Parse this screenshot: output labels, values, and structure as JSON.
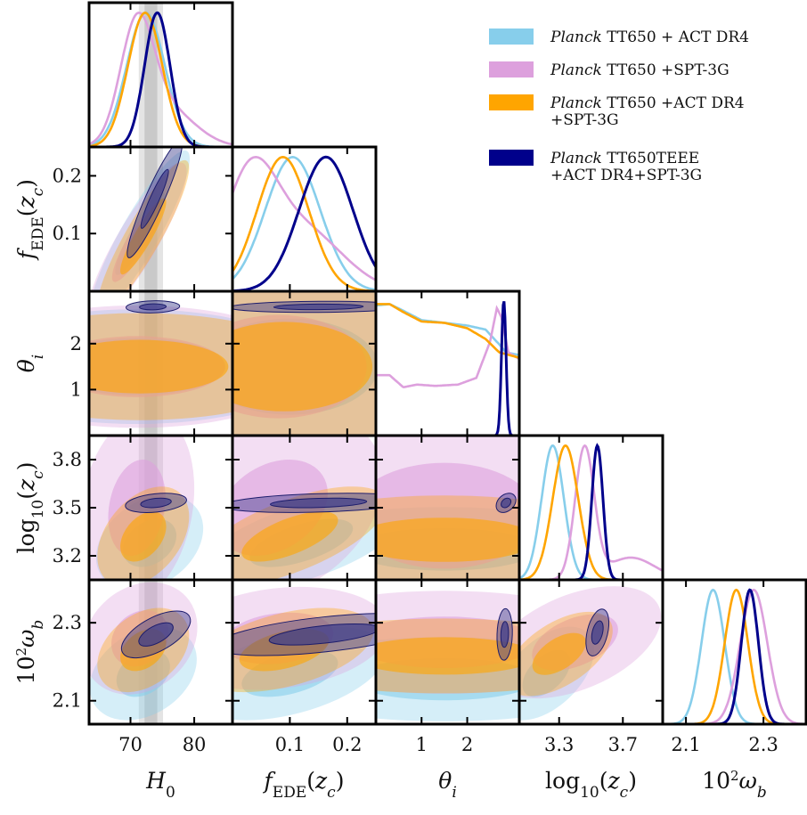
{
  "chart_data": {
    "type": "corner",
    "legend": {
      "placement": "top-right",
      "entries": [
        {
          "series": "act",
          "lines": [
            [
              "Planck",
              " TT650 + ACT DR4"
            ]
          ]
        },
        {
          "series": "spt",
          "lines": [
            [
              "Planck",
              " TT650 +SPT-3G"
            ]
          ]
        },
        {
          "series": "both",
          "lines": [
            [
              "Planck",
              " TT650 +ACT DR4"
            ],
            [
              "",
              " +SPT-3G"
            ]
          ]
        },
        {
          "series": "full",
          "lines": [
            [
              "Planck",
              " TT650TEEE"
            ],
            [
              "",
              " +ACT DR4+SPT-3G"
            ]
          ]
        }
      ]
    },
    "series": [
      {
        "id": "act",
        "color": "#87ceeb"
      },
      {
        "id": "spt",
        "color": "#dda0dd"
      },
      {
        "id": "both",
        "color": "#ffa500"
      },
      {
        "id": "full",
        "color": "#00008b"
      }
    ],
    "params": [
      {
        "key": "H0",
        "label_main": "H",
        "label_sub": "0",
        "range": [
          63.5,
          86
        ],
        "ticks": [
          70,
          80
        ],
        "tick_labels": [
          "70",
          "80"
        ]
      },
      {
        "key": "fEDE",
        "label_main": "f",
        "label_sub": "EDE",
        "label_tail": "(z",
        "label_tail_sub": "c",
        "label_end": ")",
        "range": [
          0.0,
          0.25
        ],
        "ticks": [
          0.1,
          0.2
        ],
        "tick_labels": [
          "0.1",
          "0.2"
        ]
      },
      {
        "key": "theta",
        "label_main": "θ",
        "label_sub": "i",
        "range": [
          0.0,
          3.14
        ],
        "ticks": [
          1,
          2
        ],
        "tick_labels": [
          "1",
          "2"
        ]
      },
      {
        "key": "logz",
        "label_main": "log",
        "label_sub": "10",
        "label_tail": "(z",
        "label_tail_sub": "c",
        "label_end": ")",
        "range": [
          3.05,
          3.95
        ],
        "ticks": [
          3.2,
          3.5,
          3.8
        ],
        "tick_labels": [
          "3.2",
          "3.5",
          "3.8"
        ],
        "x_ticks": [
          3.3,
          3.7
        ],
        "x_tick_labels": [
          "3.3",
          "3.7"
        ]
      },
      {
        "key": "ob",
        "label_main": "10",
        "label_sup": "2",
        "label_tail": "ω",
        "label_tail_sub": "b",
        "range": [
          2.04,
          2.41
        ],
        "ticks": [
          2.1,
          2.3
        ],
        "tick_labels": [
          "2.1",
          "2.3"
        ]
      }
    ],
    "y_tick_overrides": {
      "fEDE": {
        "ticks": [
          0.1,
          0.2
        ],
        "tick_labels": [
          "0.1",
          "0.2"
        ]
      },
      "theta": {
        "ticks": [
          1,
          2
        ],
        "tick_labels": [
          "1",
          "2"
        ]
      }
    },
    "h0_band": {
      "inner": [
        72.2,
        74.2
      ],
      "outer": [
        71.3,
        75.1
      ]
    },
    "posteriors_1d": {
      "H0": [
        {
          "series": "act",
          "kind": "gauss",
          "mean": 72.4,
          "sd": 3.0
        },
        {
          "series": "spt",
          "kind": "gauss2",
          "mean": 71.0,
          "sd": 2.6,
          "tail_mean": 75.5,
          "tail_sd": 4.5,
          "tail_w": 0.35
        },
        {
          "series": "both",
          "kind": "gauss",
          "mean": 72.3,
          "sd": 2.7
        },
        {
          "series": "full",
          "kind": "gauss",
          "mean": 74.2,
          "sd": 2.0
        }
      ],
      "fEDE": [
        {
          "series": "act",
          "kind": "gauss",
          "mean": 0.105,
          "sd": 0.048
        },
        {
          "series": "spt",
          "kind": "gauss2",
          "mean": 0.03,
          "sd": 0.045,
          "tail_mean": 0.12,
          "tail_sd": 0.07,
          "tail_w": 0.6
        },
        {
          "series": "both",
          "kind": "gauss",
          "mean": 0.088,
          "sd": 0.045
        },
        {
          "series": "full",
          "kind": "gauss",
          "mean": 0.163,
          "sd": 0.047
        }
      ],
      "theta": [
        {
          "series": "act",
          "kind": "points",
          "x": [
            0.0,
            0.3,
            0.6,
            1.0,
            1.5,
            2.0,
            2.4,
            2.7,
            2.85,
            3.14
          ],
          "y": [
            0.97,
            0.98,
            0.93,
            0.86,
            0.84,
            0.82,
            0.79,
            0.68,
            0.62,
            0.6
          ]
        },
        {
          "series": "spt",
          "kind": "points",
          "x": [
            0.0,
            0.3,
            0.6,
            0.9,
            1.3,
            1.8,
            2.2,
            2.5,
            2.65,
            2.75,
            2.9,
            3.14
          ],
          "y": [
            0.45,
            0.45,
            0.36,
            0.38,
            0.37,
            0.38,
            0.43,
            0.7,
            0.95,
            0.88,
            0.62,
            0.57
          ]
        },
        {
          "series": "both",
          "kind": "points",
          "x": [
            0.0,
            0.3,
            0.6,
            1.0,
            1.5,
            2.0,
            2.4,
            2.7,
            3.14
          ],
          "y": [
            0.98,
            0.98,
            0.92,
            0.85,
            0.84,
            0.8,
            0.72,
            0.62,
            0.58
          ]
        },
        {
          "series": "full",
          "kind": "gauss",
          "mean": 2.8,
          "sd": 0.05
        }
      ],
      "logz": [
        {
          "series": "act",
          "kind": "gauss",
          "mean": 3.26,
          "sd": 0.07
        },
        {
          "series": "spt",
          "kind": "gauss2",
          "mean": 3.46,
          "sd": 0.06,
          "tail_mean": 3.75,
          "tail_sd": 0.15,
          "tail_w": 0.17
        },
        {
          "series": "both",
          "kind": "gauss",
          "mean": 3.34,
          "sd": 0.08
        },
        {
          "series": "full",
          "kind": "gauss",
          "mean": 3.54,
          "sd": 0.035
        }
      ],
      "ob": [
        {
          "series": "act",
          "kind": "gauss",
          "mean": 2.17,
          "sd": 0.03
        },
        {
          "series": "spt",
          "kind": "gauss",
          "mean": 2.275,
          "sd": 0.035
        },
        {
          "series": "both",
          "kind": "gauss",
          "mean": 2.23,
          "sd": 0.03
        },
        {
          "series": "full",
          "kind": "gauss",
          "mean": 2.265,
          "sd": 0.022
        }
      ]
    },
    "contours_2d": [
      {
        "x": "H0",
        "y": "fEDE",
        "regions": [
          {
            "series": "act",
            "cx": 71.5,
            "cy": 0.1,
            "sx": 6.5,
            "sy": 0.12,
            "rho": 0.9
          },
          {
            "series": "spt",
            "cx": 71.0,
            "cy": 0.085,
            "sx": 6.5,
            "sy": 0.115,
            "rho": 0.88
          },
          {
            "series": "both",
            "cx": 72.0,
            "cy": 0.095,
            "sx": 6.0,
            "sy": 0.11,
            "rho": 0.9
          },
          {
            "series": "full",
            "cx": 73.8,
            "cy": 0.16,
            "sx": 3.6,
            "sy": 0.085,
            "rho": 0.93
          }
        ]
      },
      {
        "x": "H0",
        "y": "theta",
        "regions": [
          {
            "series": "act",
            "cx": 71.0,
            "cy": 1.5,
            "sx": 7.5,
            "sy": 3.2,
            "rho": 0.0
          },
          {
            "series": "spt",
            "cx": 71.0,
            "cy": 1.5,
            "sx": 8.0,
            "sy": 3.2,
            "rho": 0.0
          },
          {
            "series": "both",
            "cx": 71.5,
            "cy": 1.5,
            "sx": 7.0,
            "sy": 3.2,
            "rho": 0.0
          },
          {
            "series": "full",
            "cx": 73.5,
            "cy": 2.8,
            "sx": 3.5,
            "sy": 0.11,
            "rho": 0.1
          }
        ]
      },
      {
        "x": "fEDE",
        "y": "theta",
        "regions": [
          {
            "series": "act",
            "cx": 0.1,
            "cy": 1.5,
            "sx": 0.14,
            "sy": 3.2,
            "rho": 0.0
          },
          {
            "series": "spt",
            "cx": 0.08,
            "cy": 1.5,
            "sx": 0.15,
            "sy": 3.2,
            "rho": 0.0
          },
          {
            "series": "both",
            "cx": 0.09,
            "cy": 1.5,
            "sx": 0.13,
            "sy": 3.2,
            "rho": 0.0
          },
          {
            "series": "full",
            "cx": 0.15,
            "cy": 2.8,
            "sx": 0.13,
            "sy": 0.1,
            "rho": 0.1
          }
        ]
      },
      {
        "x": "H0",
        "y": "logz",
        "regions": [
          {
            "series": "act",
            "cx": 73.0,
            "cy": 3.28,
            "sx": 7.0,
            "sy": 0.25,
            "rho": 0.3
          },
          {
            "series": "spt",
            "cx": 71.0,
            "cy": 3.5,
            "sx": 7.5,
            "sy": 0.5,
            "rho": 0.2
          },
          {
            "series": "both",
            "cx": 72.0,
            "cy": 3.32,
            "sx": 6.0,
            "sy": 0.26,
            "rho": 0.4
          },
          {
            "series": "full",
            "cx": 74.0,
            "cy": 3.53,
            "sx": 4.0,
            "sy": 0.05,
            "rho": 0.3
          }
        ]
      },
      {
        "x": "fEDE",
        "y": "logz",
        "regions": [
          {
            "series": "act",
            "cx": 0.12,
            "cy": 3.28,
            "sx": 0.15,
            "sy": 0.25,
            "rho": 0.6
          },
          {
            "series": "spt",
            "cx": 0.07,
            "cy": 3.5,
            "sx": 0.16,
            "sy": 0.5,
            "rho": 0.3
          },
          {
            "series": "both",
            "cx": 0.1,
            "cy": 3.32,
            "sx": 0.14,
            "sy": 0.26,
            "rho": 0.65
          },
          {
            "series": "full",
            "cx": 0.15,
            "cy": 3.53,
            "sx": 0.14,
            "sy": 0.05,
            "rho": 0.3
          }
        ]
      },
      {
        "x": "theta",
        "y": "logz",
        "regions": [
          {
            "series": "act",
            "cx": 1.5,
            "cy": 3.24,
            "sx": 3.4,
            "sy": 0.22,
            "rho": 0.0
          },
          {
            "series": "spt",
            "cx": 1.5,
            "cy": 3.45,
            "sx": 3.4,
            "sy": 0.55,
            "rho": 0.0
          },
          {
            "series": "both",
            "cx": 1.5,
            "cy": 3.3,
            "sx": 3.4,
            "sy": 0.23,
            "rho": 0.0
          },
          {
            "series": "full",
            "cx": 2.85,
            "cy": 3.53,
            "sx": 0.18,
            "sy": 0.05,
            "rho": 0.3
          }
        ]
      },
      {
        "x": "H0",
        "y": "ob",
        "regions": [
          {
            "series": "act",
            "cx": 72.0,
            "cy": 2.17,
            "sx": 7.0,
            "sy": 0.1,
            "rho": 0.3
          },
          {
            "series": "spt",
            "cx": 71.5,
            "cy": 2.26,
            "sx": 7.5,
            "sy": 0.12,
            "rho": 0.2
          },
          {
            "series": "both",
            "cx": 72.0,
            "cy": 2.23,
            "sx": 6.0,
            "sy": 0.09,
            "rho": 0.35
          },
          {
            "series": "full",
            "cx": 74.0,
            "cy": 2.27,
            "sx": 4.5,
            "sy": 0.05,
            "rho": 0.6
          }
        ]
      },
      {
        "x": "fEDE",
        "y": "ob",
        "regions": [
          {
            "series": "act",
            "cx": 0.1,
            "cy": 2.17,
            "sx": 0.14,
            "sy": 0.1,
            "rho": 0.45
          },
          {
            "series": "spt",
            "cx": 0.08,
            "cy": 2.26,
            "sx": 0.16,
            "sy": 0.11,
            "rho": 0.2
          },
          {
            "series": "both",
            "cx": 0.09,
            "cy": 2.23,
            "sx": 0.13,
            "sy": 0.09,
            "rho": 0.45
          },
          {
            "series": "full",
            "cx": 0.16,
            "cy": 2.27,
            "sx": 0.16,
            "sy": 0.045,
            "rho": 0.55
          }
        ]
      },
      {
        "x": "theta",
        "y": "ob",
        "regions": [
          {
            "series": "act",
            "cx": 1.5,
            "cy": 2.155,
            "sx": 3.4,
            "sy": 0.09,
            "rho": 0.0
          },
          {
            "series": "spt",
            "cx": 1.5,
            "cy": 2.25,
            "sx": 3.4,
            "sy": 0.11,
            "rho": 0.0
          },
          {
            "series": "both",
            "cx": 1.5,
            "cy": 2.215,
            "sx": 3.4,
            "sy": 0.08,
            "rho": 0.0
          },
          {
            "series": "full",
            "cx": 2.82,
            "cy": 2.27,
            "sx": 0.14,
            "sy": 0.055,
            "rho": 0.1
          }
        ]
      },
      {
        "x": "logz",
        "y": "ob",
        "regions": [
          {
            "series": "act",
            "cx": 3.22,
            "cy": 2.17,
            "sx": 0.25,
            "sy": 0.1,
            "rho": 0.5
          },
          {
            "series": "spt",
            "cx": 3.4,
            "cy": 2.25,
            "sx": 0.45,
            "sy": 0.12,
            "rho": 0.45
          },
          {
            "series": "both",
            "cx": 3.3,
            "cy": 2.22,
            "sx": 0.28,
            "sy": 0.09,
            "rho": 0.55
          },
          {
            "series": "full",
            "cx": 3.54,
            "cy": 2.275,
            "sx": 0.06,
            "sy": 0.05,
            "rho": 0.4
          }
        ]
      }
    ]
  }
}
